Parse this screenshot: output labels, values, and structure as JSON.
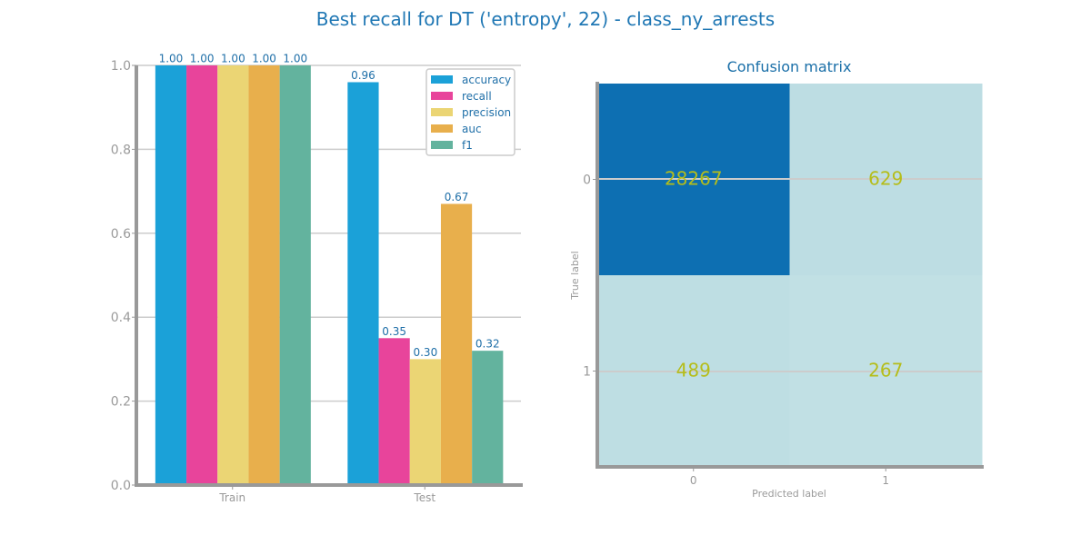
{
  "title": "Best recall for DT ('entropy', 22) - class_ny_arrests",
  "chart_data": [
    {
      "type": "bar",
      "categories": [
        "Train",
        "Test"
      ],
      "series": [
        {
          "name": "accuracy",
          "values": [
            1.0,
            0.96
          ],
          "color": "#1ba1d8"
        },
        {
          "name": "recall",
          "values": [
            1.0,
            0.35
          ],
          "color": "#e8449b"
        },
        {
          "name": "precision",
          "values": [
            1.0,
            0.3
          ],
          "color": "#ebd574"
        },
        {
          "name": "auc",
          "values": [
            1.0,
            0.67
          ],
          "color": "#e8af4c"
        },
        {
          "name": "f1",
          "values": [
            1.0,
            0.32
          ],
          "color": "#63b39e"
        }
      ],
      "data_labels": [
        [
          "1.00",
          "1.00",
          "1.00",
          "1.00",
          "1.00"
        ],
        [
          "0.96",
          "0.35",
          "0.30",
          "0.67",
          "0.32"
        ]
      ],
      "ylim": [
        0,
        1.0
      ],
      "yticks": [
        "0.0",
        "0.2",
        "0.4",
        "0.6",
        "0.8",
        "1.0"
      ],
      "grid": true,
      "legend": "top-right",
      "title": "",
      "xlabel": "",
      "ylabel": ""
    },
    {
      "type": "heatmap",
      "title": "Confusion matrix",
      "xlabel": "Predicted label",
      "ylabel": "True label",
      "x_ticks": [
        "0",
        "1"
      ],
      "y_ticks": [
        "0",
        "1"
      ],
      "values": [
        [
          28267,
          629
        ],
        [
          489,
          267
        ]
      ],
      "cell_labels": [
        [
          "28267",
          "629"
        ],
        [
          "489",
          "267"
        ]
      ],
      "colors": {
        "high": "#0d6fb2",
        "low": "#badbe0"
      }
    }
  ]
}
